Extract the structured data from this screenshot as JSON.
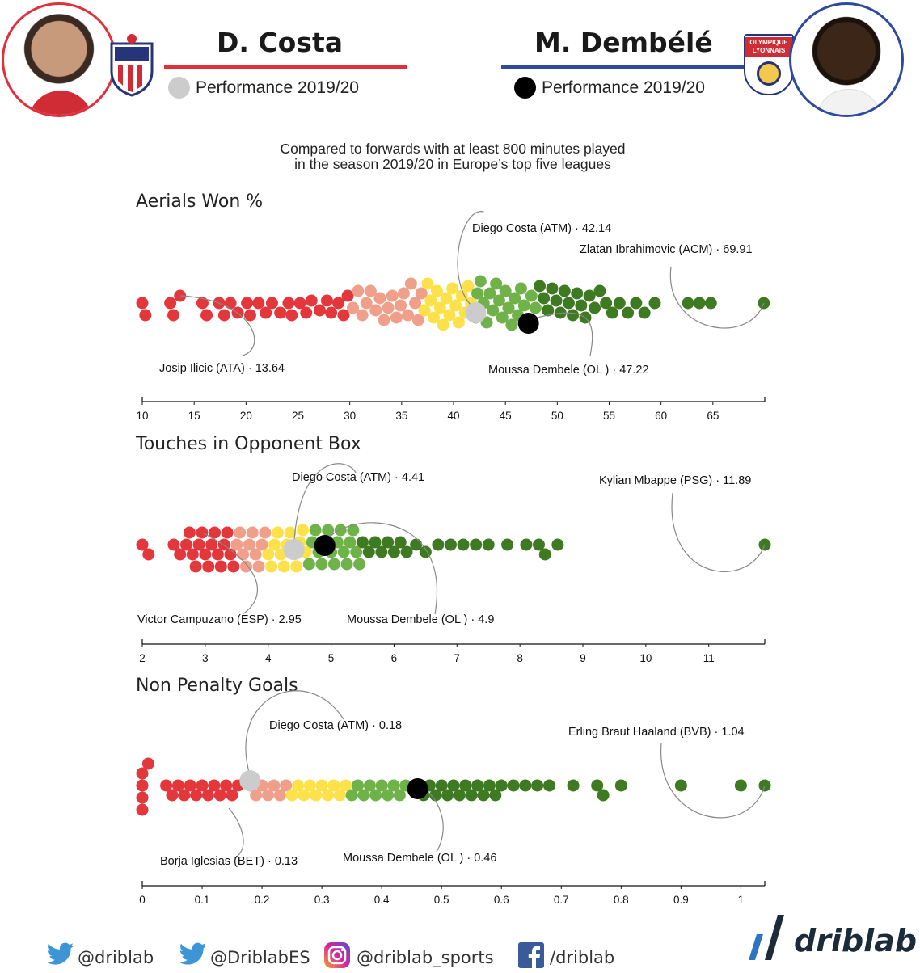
{
  "header": {
    "left": {
      "name": "D. Costa",
      "legend": "Performance 2019/20",
      "color": "#e0303a",
      "marker_color": "#cccccc"
    },
    "right": {
      "name": "M. Dembélé",
      "legend": "Performance 2019/20",
      "color": "#2e4a9e",
      "marker_color": "#000000",
      "club_badge_text": "OLYMPIQUE LYONNAIS"
    }
  },
  "subtitle_lines": [
    "Compared to forwards with at least 800 minutes played",
    "in the season 2019/20 in Europe’s top five leagues"
  ],
  "palette": [
    "#e3373c",
    "#f0a08a",
    "#fde14b",
    "#70b24a",
    "#3e7a22"
  ],
  "chart_data": [
    {
      "type": "scatter",
      "title": "Aerials Won %",
      "xlabel": "",
      "ylabel": "",
      "xlim": [
        10,
        70
      ],
      "ticks": [
        10,
        15,
        20,
        25,
        30,
        35,
        40,
        45,
        50,
        55,
        60,
        65
      ],
      "bands": [
        30,
        37,
        42,
        48
      ],
      "annotations": [
        {
          "label": "Diego Costa (ATM) · 42.14",
          "value": 42.14,
          "highlight": "costa"
        },
        {
          "label": "Zlatan Ibrahimovic (ACM) · 69.91",
          "value": 69.91
        },
        {
          "label": "Josip Ilicic (ATA) · 13.64",
          "value": 13.64
        },
        {
          "label": "Moussa Dembele (OL ) · 47.22",
          "value": 47.22,
          "highlight": "dembele"
        }
      ],
      "values": [
        10,
        10.3,
        12.7,
        13,
        13.64,
        15.8,
        16.2,
        17.4,
        17.9,
        18.5,
        19.2,
        20.1,
        20.4,
        21.2,
        21.9,
        22.5,
        23.3,
        24.1,
        24.4,
        25.2,
        25.8,
        26.3,
        27.1,
        27.8,
        28.2,
        28.9,
        29.4,
        29.8,
        30.3,
        30.8,
        31.2,
        31.6,
        32,
        32.5,
        32.9,
        33.3,
        33.7,
        34.1,
        34.5,
        34.9,
        35.2,
        35.6,
        35.9,
        36.3,
        36.6,
        36.9,
        37.2,
        37.5,
        37.8,
        38.1,
        38.4,
        38.7,
        39,
        39.3,
        39.6,
        39.9,
        40.2,
        40.5,
        40.8,
        41.1,
        41.4,
        41.7,
        42.14,
        42.3,
        42.6,
        42.9,
        43.2,
        43.5,
        43.8,
        44.1,
        44.4,
        44.7,
        45,
        45.3,
        45.6,
        45.9,
        46.2,
        46.5,
        46.8,
        47.22,
        47.5,
        47.9,
        48.3,
        48.7,
        49.1,
        49.5,
        49.9,
        50.3,
        50.7,
        51.1,
        51.5,
        51.9,
        52.3,
        52.7,
        53.1,
        53.6,
        54.1,
        54.7,
        55.3,
        56,
        56.8,
        57.6,
        58.4,
        59.4,
        62.6,
        63.7,
        64.8,
        69.91
      ]
    },
    {
      "type": "scatter",
      "title": "Touches in Opponent Box",
      "xlabel": "",
      "ylabel": "",
      "xlim": [
        2,
        11.89
      ],
      "ticks": [
        2,
        3,
        4,
        5,
        6,
        7,
        8,
        9,
        10,
        11
      ],
      "bands": [
        3.5,
        4,
        4.65,
        5.5
      ],
      "annotations": [
        {
          "label": "Diego Costa (ATM) · 4.41",
          "value": 4.41,
          "highlight": "costa"
        },
        {
          "label": "Kylian Mbappe (PSG) · 11.89",
          "value": 11.89
        },
        {
          "label": "Victor Campuzano (ESP) · 2.95",
          "value": 2.95
        },
        {
          "label": "Moussa Dembele (OL ) · 4.9",
          "value": 4.9,
          "highlight": "dembele"
        }
      ],
      "values": [
        2,
        2.1,
        2.5,
        2.6,
        2.7,
        2.75,
        2.8,
        2.85,
        2.9,
        2.95,
        3,
        3.05,
        3.1,
        3.15,
        3.2,
        3.25,
        3.3,
        3.35,
        3.4,
        3.45,
        3.5,
        3.55,
        3.6,
        3.65,
        3.7,
        3.75,
        3.8,
        3.85,
        3.9,
        3.95,
        4,
        4.05,
        4.1,
        4.15,
        4.2,
        4.25,
        4.3,
        4.35,
        4.41,
        4.45,
        4.5,
        4.55,
        4.6,
        4.65,
        4.7,
        4.75,
        4.8,
        4.85,
        4.9,
        4.95,
        5,
        5.05,
        5.1,
        5.15,
        5.2,
        5.25,
        5.3,
        5.35,
        5.4,
        5.45,
        5.5,
        5.6,
        5.7,
        5.8,
        5.9,
        6,
        6.1,
        6.2,
        6.35,
        6.5,
        6.7,
        6.9,
        7.1,
        7.3,
        7.5,
        7.8,
        8.1,
        8.3,
        8.4,
        8.6,
        11.89
      ]
    },
    {
      "type": "scatter",
      "title": "Non Penalty Goals",
      "xlabel": "",
      "ylabel": "",
      "xlim": [
        0,
        1.04
      ],
      "ticks": [
        0,
        0.1,
        0.2,
        0.3,
        0.4,
        0.5,
        0.6,
        0.7,
        0.8,
        0.9,
        1
      ],
      "bands": [
        0.17,
        0.25,
        0.35,
        0.45
      ],
      "annotations": [
        {
          "label": "Diego Costa (ATM) · 0.18",
          "value": 0.18,
          "highlight": "costa"
        },
        {
          "label": "Erling Braut Haaland (BVB) · 1.04",
          "value": 1.04
        },
        {
          "label": "Borja Iglesias (BET) · 0.13",
          "value": 0.13
        },
        {
          "label": "Moussa Dembele (OL ) · 0.46",
          "value": 0.46,
          "highlight": "dembele"
        }
      ],
      "values": [
        0,
        0,
        0,
        0,
        0.01,
        0.04,
        0.05,
        0.06,
        0.07,
        0.08,
        0.09,
        0.1,
        0.11,
        0.12,
        0.13,
        0.14,
        0.15,
        0.16,
        0.18,
        0.19,
        0.2,
        0.21,
        0.22,
        0.23,
        0.24,
        0.25,
        0.26,
        0.27,
        0.28,
        0.29,
        0.3,
        0.31,
        0.32,
        0.33,
        0.34,
        0.35,
        0.36,
        0.37,
        0.38,
        0.39,
        0.4,
        0.41,
        0.42,
        0.43,
        0.44,
        0.46,
        0.47,
        0.48,
        0.49,
        0.5,
        0.51,
        0.52,
        0.53,
        0.54,
        0.55,
        0.56,
        0.57,
        0.58,
        0.59,
        0.6,
        0.62,
        0.64,
        0.66,
        0.68,
        0.72,
        0.76,
        0.77,
        0.8,
        0.9,
        1,
        1.04
      ]
    }
  ],
  "footer": {
    "twitter1": "@driblab",
    "twitter2": "@DriblabES",
    "instagram": "@driblab_sports",
    "facebook": "/driblab",
    "brand": "driblab"
  }
}
